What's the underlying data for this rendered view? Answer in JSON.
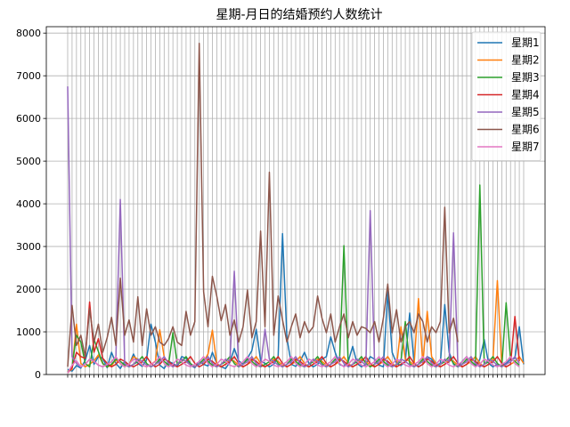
{
  "chart_data": {
    "type": "line",
    "title": "星期-月日的结婚预约人数统计",
    "xlabel": "",
    "ylabel": "",
    "ylim": [
      0,
      8150
    ],
    "yticks": [
      0,
      1000,
      2000,
      3000,
      4000,
      5000,
      6000,
      7000,
      8000
    ],
    "grid": true,
    "legend_position": "top-right",
    "x_tick_labels_note": "",
    "series": [
      {
        "name": "星期1",
        "color": "#1f77b4",
        "values": [
          120,
          80,
          210,
          150,
          330,
          680,
          240,
          420,
          380,
          160,
          520,
          260,
          140,
          310,
          220,
          480,
          260,
          190,
          350,
          1180,
          760,
          220,
          140,
          310,
          260,
          190,
          420,
          380,
          220,
          160,
          310,
          240,
          200,
          520,
          260,
          180,
          140,
          290,
          610,
          320,
          240,
          380,
          560,
          1060,
          320,
          260,
          180,
          240,
          420,
          3300,
          860,
          240,
          190,
          310,
          520,
          260,
          180,
          240,
          360,
          420,
          880,
          520,
          240,
          190,
          310,
          660,
          260,
          180,
          240,
          420,
          360,
          220,
          180,
          1940,
          520,
          260,
          210,
          310,
          1440,
          260,
          180,
          240,
          420,
          360,
          220,
          260,
          1640,
          520,
          240,
          180,
          310,
          420,
          260,
          190,
          360,
          820,
          260,
          180,
          240,
          210,
          260,
          360,
          380,
          1120,
          240
        ]
      },
      {
        "name": "星期2",
        "color": "#ff7f0e",
        "values": [
          80,
          120,
          1180,
          260,
          180,
          240,
          320,
          460,
          260,
          180,
          210,
          340,
          260,
          180,
          240,
          420,
          360,
          220,
          180,
          240,
          310,
          1050,
          420,
          260,
          180,
          240,
          360,
          310,
          220,
          180,
          240,
          300,
          480,
          1040,
          260,
          180,
          240,
          360,
          310,
          220,
          180,
          240,
          300,
          420,
          260,
          180,
          240,
          360,
          310,
          220,
          180,
          240,
          300,
          420,
          260,
          180,
          240,
          360,
          310,
          220,
          180,
          240,
          300,
          420,
          260,
          180,
          240,
          360,
          310,
          220,
          180,
          240,
          300,
          420,
          260,
          180,
          1120,
          360,
          310,
          220,
          1780,
          240,
          1480,
          420,
          260,
          180,
          240,
          360,
          310,
          220,
          180,
          240,
          300,
          420,
          260,
          180,
          240,
          360,
          2200,
          220,
          180,
          240,
          300,
          420,
          260
        ]
      },
      {
        "name": "星期3",
        "color": "#2ca02c",
        "values": [
          60,
          180,
          920,
          760,
          260,
          180,
          820,
          540,
          260,
          180,
          240,
          360,
          310,
          220,
          180,
          240,
          300,
          420,
          260,
          180,
          240,
          360,
          310,
          220,
          980,
          240,
          300,
          420,
          260,
          180,
          240,
          360,
          310,
          220,
          180,
          240,
          300,
          420,
          260,
          180,
          240,
          360,
          310,
          220,
          180,
          240,
          300,
          420,
          260,
          180,
          240,
          360,
          310,
          220,
          180,
          240,
          300,
          420,
          260,
          180,
          240,
          360,
          310,
          3020,
          180,
          240,
          300,
          420,
          260,
          180,
          240,
          360,
          310,
          220,
          180,
          240,
          300,
          1240,
          260,
          180,
          240,
          360,
          310,
          220,
          180,
          240,
          300,
          420,
          260,
          180,
          240,
          360,
          310,
          220,
          4440,
          240,
          300,
          420,
          260,
          180,
          1680,
          360,
          310,
          220
        ]
      },
      {
        "name": "星期4",
        "color": "#d62728",
        "values": [
          40,
          160,
          520,
          420,
          380,
          1700,
          520,
          840,
          380,
          260,
          180,
          240,
          360,
          310,
          220,
          180,
          240,
          300,
          420,
          260,
          180,
          240,
          360,
          310,
          220,
          180,
          240,
          300,
          420,
          260,
          180,
          240,
          360,
          310,
          220,
          180,
          240,
          300,
          420,
          260,
          180,
          240,
          360,
          310,
          220,
          180,
          240,
          300,
          420,
          260,
          180,
          240,
          360,
          310,
          220,
          180,
          240,
          300,
          420,
          260,
          180,
          240,
          360,
          310,
          220,
          180,
          240,
          300,
          420,
          260,
          180,
          240,
          360,
          310,
          220,
          180,
          240,
          300,
          420,
          260,
          180,
          240,
          360,
          310,
          220,
          180,
          240,
          300,
          420,
          260,
          180,
          240,
          360,
          310,
          220,
          180,
          240,
          300,
          420,
          260,
          180,
          240,
          1360,
          310
        ]
      },
      {
        "name": "星期5",
        "color": "#9467bd",
        "values": [
          6750,
          420,
          260,
          180,
          240,
          360,
          310,
          220,
          180,
          240,
          300,
          420,
          4100,
          260,
          180,
          240,
          360,
          310,
          220,
          180,
          240,
          300,
          420,
          260,
          180,
          240,
          360,
          310,
          220,
          180,
          240,
          300,
          420,
          260,
          180,
          240,
          360,
          310,
          2420,
          180,
          240,
          300,
          420,
          260,
          180,
          1060,
          360,
          310,
          220,
          180,
          240,
          300,
          420,
          260,
          180,
          240,
          360,
          310,
          220,
          180,
          240,
          300,
          420,
          260,
          180,
          240,
          360,
          310,
          220,
          3840,
          240,
          300,
          420,
          260,
          180,
          240,
          360,
          310,
          220,
          180,
          240,
          300,
          420,
          260,
          180,
          240,
          360,
          310,
          3320,
          180,
          240,
          300,
          420,
          260,
          180,
          240,
          360,
          310,
          220,
          180,
          240,
          300,
          420,
          260
        ]
      },
      {
        "name": "星期6",
        "color": "#8c564b",
        "values": [
          180,
          1620,
          680,
          920,
          420,
          1540,
          760,
          1180,
          520,
          860,
          1340,
          680,
          2260,
          920,
          1280,
          760,
          1820,
          680,
          1540,
          920,
          1120,
          760,
          680,
          840,
          1120,
          760,
          680,
          1480,
          920,
          1240,
          7760,
          1940,
          1120,
          2300,
          1840,
          1260,
          1640,
          920,
          1280,
          760,
          1120,
          1980,
          860,
          1240,
          3360,
          1120,
          4740,
          920,
          1840,
          1280,
          760,
          1120,
          1420,
          860,
          1240,
          980,
          1120,
          1840,
          1320,
          980,
          1420,
          760,
          1120,
          1420,
          860,
          1240,
          920,
          1120,
          1080,
          980,
          1240,
          760,
          1320,
          2120,
          980,
          1520,
          760,
          1120,
          1240,
          980,
          1420,
          1240,
          760,
          1120,
          980,
          1240,
          3920,
          980,
          1320,
          760
        ]
      },
      {
        "name": "星期7",
        "color": "#e377c2",
        "values": [
          40,
          220,
          320,
          180,
          240,
          360,
          310,
          220,
          180,
          240,
          300,
          420,
          260,
          180,
          240,
          360,
          310,
          220,
          180,
          240,
          300,
          420,
          260,
          180,
          240,
          360,
          310,
          220,
          180,
          240,
          300,
          420,
          260,
          180,
          240,
          360,
          310,
          220,
          180,
          240,
          300,
          420,
          260,
          180,
          240,
          360,
          310,
          220,
          180,
          240,
          300,
          420,
          260,
          180,
          240,
          360,
          310,
          220,
          180,
          240,
          300,
          420,
          260,
          180,
          240,
          360,
          310,
          220,
          180,
          240,
          300,
          420,
          260,
          180,
          240,
          360,
          310,
          220,
          180,
          240,
          300,
          420,
          260,
          180,
          240,
          360,
          310,
          220,
          180,
          240,
          300,
          420,
          260,
          180,
          240,
          360,
          310,
          220,
          180,
          240,
          300,
          420,
          260,
          180
        ]
      }
    ]
  }
}
